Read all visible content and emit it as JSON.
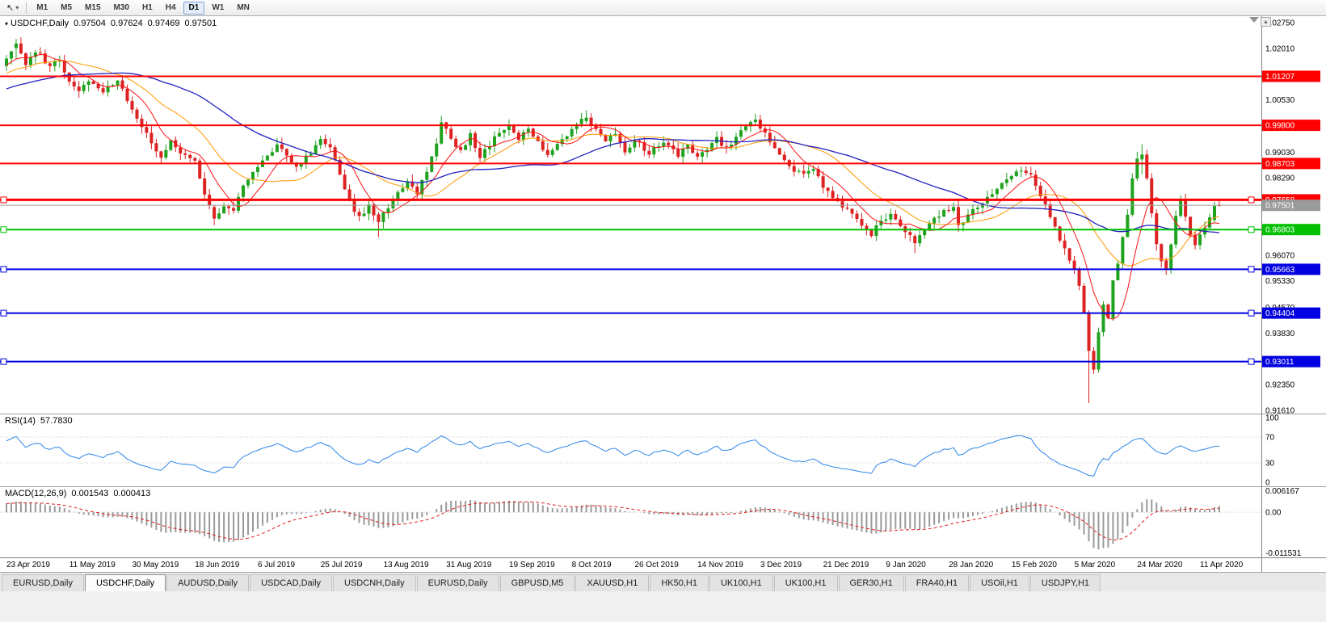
{
  "toolbar": {
    "cursor_icon": "↖",
    "timeframes": [
      "M1",
      "M5",
      "M15",
      "M30",
      "H1",
      "H4",
      "D1",
      "W1",
      "MN"
    ],
    "active_timeframe": "D1"
  },
  "chart": {
    "symbol_period": "USDCHF,Daily",
    "ohlc": {
      "open": "0.97504",
      "high": "0.97624",
      "low": "0.97469",
      "close": "0.97501"
    }
  },
  "rsi": {
    "label": "RSI(14)",
    "value": "57.7830",
    "axis": [
      "100",
      "70",
      "30",
      "0"
    ],
    "levels": [
      70,
      30
    ]
  },
  "macd": {
    "label": "MACD(12,26,9)",
    "value1": "0.001543",
    "value2": "0.000413",
    "axis_top": "0.006167",
    "axis_zero": "0.00",
    "axis_bottom": "-0.011531",
    "range_top": 0.006167,
    "range_bottom": -0.011531
  },
  "price_axis": {
    "max": 1.0275,
    "min": 0.9161,
    "ticks": [
      "1.02750",
      "1.02010",
      "1.00530",
      "0.99030",
      "0.98290",
      "0.96070",
      "0.95330",
      "0.94570",
      "0.93830",
      "0.92350",
      "0.91610"
    ]
  },
  "hlines": [
    {
      "label": "1.01207",
      "price": 1.01207,
      "color": "#FF0000",
      "width": 2,
      "handles": []
    },
    {
      "label": "0.99800",
      "price": 0.998,
      "color": "#FF0000",
      "width": 2,
      "handles": []
    },
    {
      "label": "0.98703",
      "price": 0.98703,
      "color": "#FF0000",
      "width": 2,
      "handles": []
    },
    {
      "label": "0.97658",
      "price": 0.97658,
      "color": "#FF0000",
      "width": 3,
      "handles": [
        "left",
        "right"
      ]
    },
    {
      "label": "0.96803",
      "price": 0.96803,
      "color": "#00C000",
      "width": 2,
      "handles": [
        "left",
        "right"
      ]
    },
    {
      "label": "0.95663",
      "price": 0.95663,
      "color": "#0000E0",
      "width": 2,
      "handles": [
        "left",
        "right"
      ]
    },
    {
      "label": "0.94404",
      "price": 0.94404,
      "color": "#0000E0",
      "width": 2,
      "handles": [
        "left",
        "right"
      ]
    },
    {
      "label": "0.93011",
      "price": 0.93011,
      "color": "#0000E0",
      "width": 2,
      "handles": [
        "left",
        "right"
      ]
    }
  ],
  "current_price": {
    "label": "0.97501",
    "price": 0.97501,
    "color": "#9A9A9A"
  },
  "date_axis": [
    "23 Apr 2019",
    "11 May 2019",
    "30 May 2019",
    "18 Jun 2019",
    "6 Jul 2019",
    "25 Jul 2019",
    "13 Aug 2019",
    "31 Aug 2019",
    "19 Sep 2019",
    "8 Oct 2019",
    "26 Oct 2019",
    "14 Nov 2019",
    "3 Dec 2019",
    "21 Dec 2019",
    "9 Jan 2020",
    "28 Jan 2020",
    "15 Feb 2020",
    "5 Mar 2020",
    "24 Mar 2020",
    "11 Apr 2020"
  ],
  "tabs": {
    "active_index": 1,
    "items": [
      "EURUSD,Daily",
      "USDCHF,Daily",
      "AUDUSD,Daily",
      "USDCAD,Daily",
      "USDCNH,Daily",
      "EURUSD,Daily",
      "GBPUSD,M5",
      "XAUUSD,H1",
      "HK50,H1",
      "UK100,H1",
      "UK100,H1",
      "GER30,H1",
      "FRA40,H1",
      "USOil,H1",
      "USDJPY,H1"
    ]
  },
  "colors": {
    "candle_up": "#1FA31F",
    "candle_down": "#DD2222",
    "ma_fast_red": "#FF1010",
    "ma_mid_orange": "#FF9900",
    "ma_slow_blue": "#2020C0",
    "rsi_line": "#2E86E8",
    "macd_hist": "#9A9A9A",
    "macd_signal": "#E02020",
    "axis_border": "#808080",
    "panel_sep": "#A0A0A0"
  },
  "chart_data": {
    "type": "candlestick",
    "symbol": "USDCHF",
    "timeframe": "Daily",
    "date_range": [
      "23 Apr 2019",
      "Apr 2020"
    ],
    "ylim": [
      0.9161,
      1.0275
    ],
    "candle_count": 252,
    "last_candle_ohlc": [
      0.97504,
      0.97624,
      0.97469,
      0.97501
    ],
    "price_path": [
      [
        0,
        1.0175
      ],
      [
        2,
        1.0215
      ],
      [
        4,
        1.016
      ],
      [
        6,
        1.0195
      ],
      [
        9,
        1.015
      ],
      [
        11,
        1.0168
      ],
      [
        13,
        1.0105
      ],
      [
        15,
        1.0072
      ],
      [
        17,
        1.011
      ],
      [
        20,
        1.0078
      ],
      [
        23,
        1.0102
      ],
      [
        26,
        1.0032
      ],
      [
        28,
        0.9978
      ],
      [
        30,
        0.993
      ],
      [
        32,
        0.9882
      ],
      [
        34,
        0.9938
      ],
      [
        36,
        0.9906
      ],
      [
        39,
        0.9872
      ],
      [
        41,
        0.9778
      ],
      [
        43,
        0.9712
      ],
      [
        45,
        0.9752
      ],
      [
        47,
        0.9728
      ],
      [
        49,
        0.9812
      ],
      [
        52,
        0.9862
      ],
      [
        54,
        0.9896
      ],
      [
        56,
        0.9922
      ],
      [
        58,
        0.9892
      ],
      [
        60,
        0.9862
      ],
      [
        63,
        0.9902
      ],
      [
        65,
        0.9936
      ],
      [
        67,
        0.9912
      ],
      [
        69,
        0.9842
      ],
      [
        71,
        0.9758
      ],
      [
        73,
        0.9716
      ],
      [
        75,
        0.9746
      ],
      [
        77,
        0.9702
      ],
      [
        79,
        0.9748
      ],
      [
        81,
        0.9792
      ],
      [
        83,
        0.9812
      ],
      [
        85,
        0.9782
      ],
      [
        87,
        0.9852
      ],
      [
        89,
        0.9925
      ],
      [
        90,
        0.9988
      ],
      [
        92,
        0.9942
      ],
      [
        94,
        0.9906
      ],
      [
        96,
        0.9952
      ],
      [
        98,
        0.9888
      ],
      [
        100,
        0.9922
      ],
      [
        102,
        0.9962
      ],
      [
        104,
        0.9976
      ],
      [
        106,
        0.9942
      ],
      [
        108,
        0.9976
      ],
      [
        110,
        0.9932
      ],
      [
        112,
        0.9892
      ],
      [
        114,
        0.9922
      ],
      [
        116,
        0.9952
      ],
      [
        118,
        0.9982
      ],
      [
        120,
        1.0002
      ],
      [
        122,
        0.9972
      ],
      [
        124,
        0.9932
      ],
      [
        126,
        0.9962
      ],
      [
        128,
        0.9902
      ],
      [
        130,
        0.9936
      ],
      [
        133,
        0.9902
      ],
      [
        136,
        0.9932
      ],
      [
        139,
        0.9892
      ],
      [
        141,
        0.9922
      ],
      [
        143,
        0.9892
      ],
      [
        145,
        0.9916
      ],
      [
        147,
        0.9942
      ],
      [
        149,
        0.9912
      ],
      [
        151,
        0.9946
      ],
      [
        153,
        0.9976
      ],
      [
        155,
        0.9996
      ],
      [
        157,
        0.9952
      ],
      [
        159,
        0.9916
      ],
      [
        161,
        0.9882
      ],
      [
        163,
        0.9852
      ],
      [
        165,
        0.9836
      ],
      [
        167,
        0.9856
      ],
      [
        169,
        0.9806
      ],
      [
        171,
        0.9776
      ],
      [
        173,
        0.9746
      ],
      [
        175,
        0.9722
      ],
      [
        177,
        0.9692
      ],
      [
        179,
        0.9666
      ],
      [
        181,
        0.9706
      ],
      [
        183,
        0.9722
      ],
      [
        185,
        0.9696
      ],
      [
        187,
        0.9662
      ],
      [
        188,
        0.9641
      ],
      [
        190,
        0.9676
      ],
      [
        192,
        0.9712
      ],
      [
        194,
        0.9736
      ],
      [
        196,
        0.9746
      ],
      [
        197,
        0.9692
      ],
      [
        199,
        0.9722
      ],
      [
        201,
        0.9746
      ],
      [
        203,
        0.9772
      ],
      [
        205,
        0.9802
      ],
      [
        207,
        0.9822
      ],
      [
        209,
        0.9846
      ],
      [
        210,
        0.9856
      ],
      [
        212,
        0.9832
      ],
      [
        214,
        0.9782
      ],
      [
        216,
        0.9722
      ],
      [
        218,
        0.9652
      ],
      [
        220,
        0.9592
      ],
      [
        221,
        0.9562
      ],
      [
        222,
        0.9512
      ],
      [
        223,
        0.9442
      ],
      [
        224,
        0.9332
      ],
      [
        225,
        0.9285
      ],
      [
        226,
        0.9382
      ],
      [
        227,
        0.9462
      ],
      [
        228,
        0.9422
      ],
      [
        229,
        0.9532
      ],
      [
        230,
        0.9582
      ],
      [
        231,
        0.9652
      ],
      [
        232,
        0.9722
      ],
      [
        233,
        0.9822
      ],
      [
        234,
        0.9882
      ],
      [
        235,
        0.9896
      ],
      [
        236,
        0.9822
      ],
      [
        237,
        0.9722
      ],
      [
        238,
        0.9642
      ],
      [
        239,
        0.9592
      ],
      [
        240,
        0.9565
      ],
      [
        241,
        0.9642
      ],
      [
        242,
        0.9722
      ],
      [
        243,
        0.9768
      ],
      [
        244,
        0.9722
      ],
      [
        245,
        0.9662
      ],
      [
        246,
        0.9632
      ],
      [
        247,
        0.9662
      ],
      [
        248,
        0.9692
      ],
      [
        249,
        0.9712
      ],
      [
        250,
        0.9748
      ],
      [
        251,
        0.975
      ]
    ],
    "overrides": {
      "2": [
        1.0202,
        1.0228,
        1.017,
        1.0215
      ],
      "43": [
        0.9745,
        0.9752,
        0.9693,
        0.9712
      ],
      "77": [
        0.9724,
        0.973,
        0.9659,
        0.9702
      ],
      "120": [
        0.9992,
        1.0023,
        0.9985,
        1.0002
      ],
      "188": [
        0.9662,
        0.9668,
        0.9613,
        0.9641
      ],
      "224": [
        0.9442,
        0.9448,
        0.9182,
        0.9332
      ],
      "235": [
        0.9882,
        0.9925,
        0.984,
        0.9896
      ],
      "240": [
        0.9592,
        0.96,
        0.955,
        0.9565
      ],
      "250": [
        0.9708,
        0.976,
        0.97,
        0.9748
      ],
      "251": [
        0.97504,
        0.97624,
        0.97469,
        0.97501
      ]
    },
    "indicators": [
      "SMA fast (red)",
      "SMA mid (orange)",
      "SMA slow (blue)",
      "RSI(14) = 57.7830",
      "MACD(12,26,9) = 0.001543 / 0.000413"
    ]
  }
}
